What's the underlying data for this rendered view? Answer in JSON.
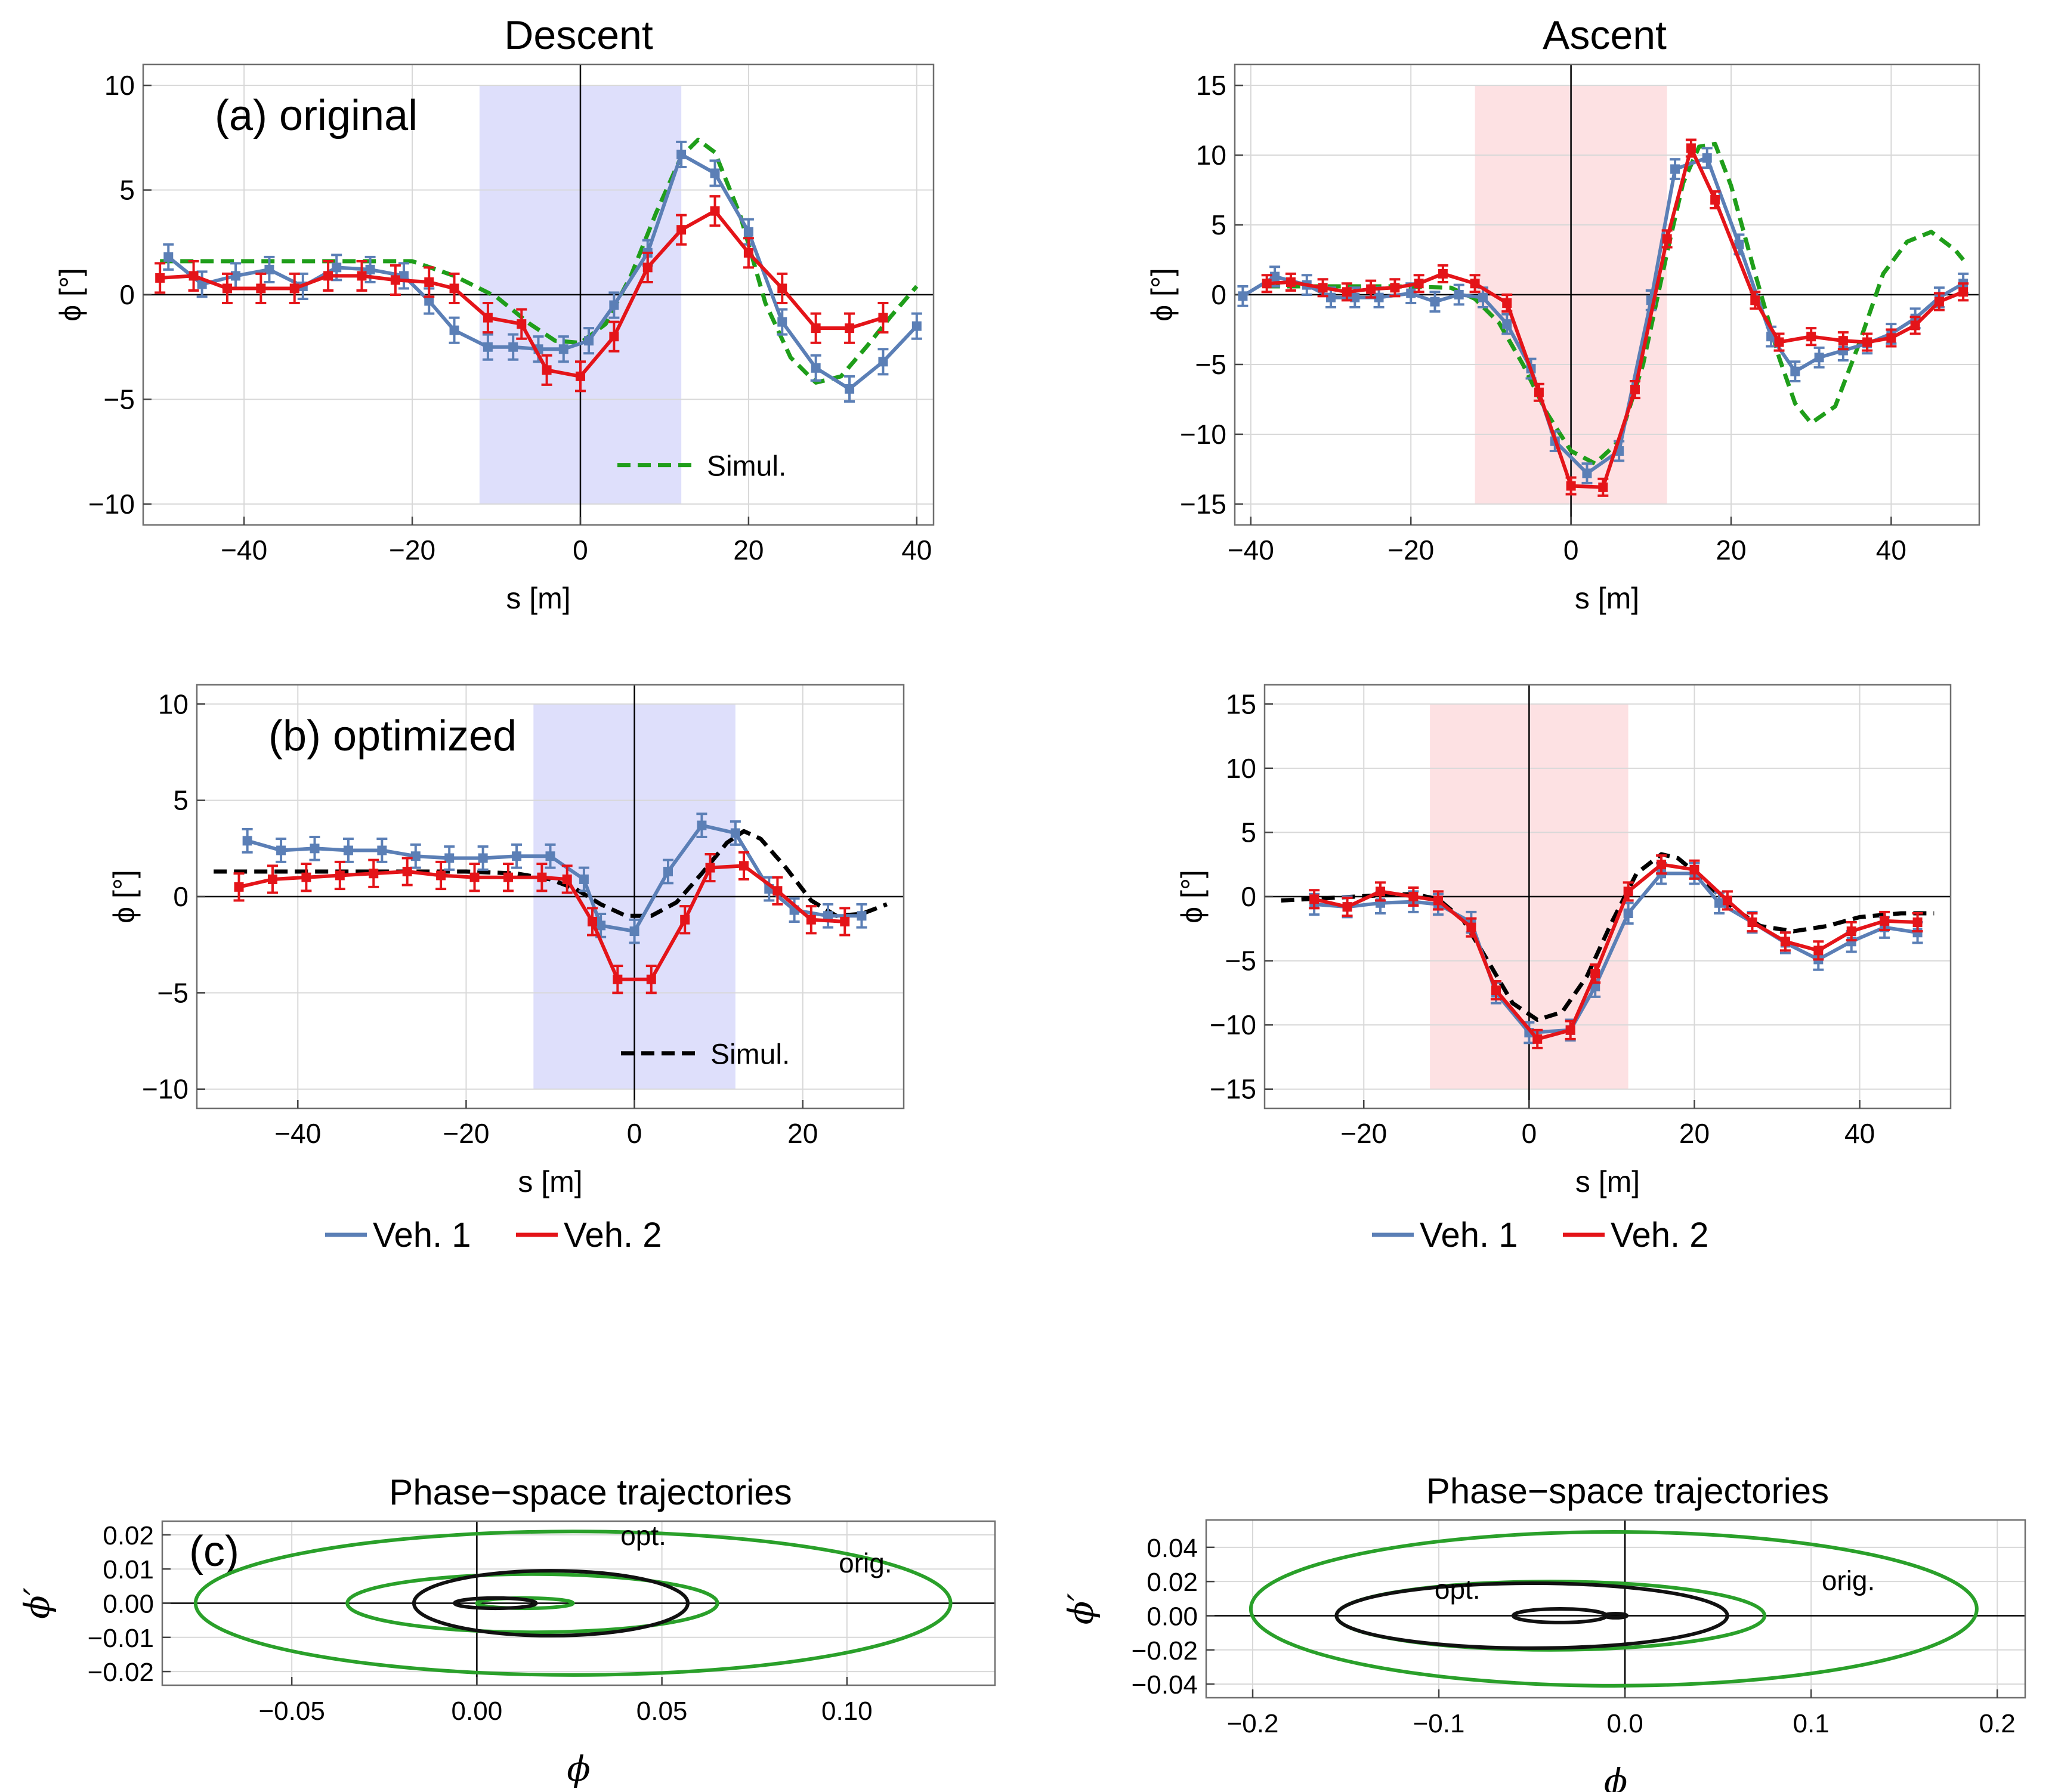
{
  "figure": {
    "column_titles": [
      "Descent",
      "Ascent"
    ],
    "colors": {
      "veh1": "#5b7fb6",
      "veh2": "#e41419",
      "simul_green": "#1f9e1a",
      "simul_black": "#000000",
      "descent_shade": "#dedffb",
      "ascent_shade": "#fde1e3",
      "phase_green": "#2aa02a",
      "phase_black": "#111111"
    },
    "legend_rows": [
      {
        "veh1": "Veh. 1",
        "veh2": "Veh. 2"
      },
      {
        "veh1": "Veh. 1",
        "veh2": "Veh. 2"
      }
    ],
    "symbols": {
      "phi": "ϕ",
      "phi_unit": "[°]",
      "phi_prime": "ϕ′"
    }
  },
  "chart_data": [
    {
      "id": "descent-original",
      "type": "line",
      "panel_label": "(a) original",
      "xlabel": "s [m]",
      "ylabel": "ϕ [°]",
      "xlim": [
        -52,
        42
      ],
      "ylim": [
        -11,
        11
      ],
      "xticks": [
        -40,
        -20,
        0,
        20,
        40
      ],
      "yticks": [
        -10,
        -5,
        0,
        5,
        10
      ],
      "xtick_labels": [
        "−40",
        "−20",
        "0",
        "20",
        "40"
      ],
      "ytick_labels": [
        "−10",
        "−5",
        "0",
        "5",
        "10"
      ],
      "shade": {
        "x": [
          -12,
          12
        ],
        "y": [
          -10,
          10
        ],
        "color": "descent_shade"
      },
      "legend": [
        {
          "name": "Simul.",
          "style": "dashed",
          "color": "simul_green"
        }
      ],
      "series": [
        {
          "name": "Veh. 1",
          "color": "veh1",
          "err": 0.6,
          "x": [
            -49,
            -45,
            -41,
            -37,
            -33,
            -29,
            -25,
            -21,
            -18,
            -15,
            -11,
            -8,
            -5,
            -2,
            1,
            4,
            8,
            12,
            16,
            20,
            24,
            28,
            32,
            36,
            40
          ],
          "y": [
            1.8,
            0.5,
            0.9,
            1.2,
            0.4,
            1.3,
            1.2,
            0.9,
            -0.3,
            -1.7,
            -2.5,
            -2.5,
            -2.6,
            -2.6,
            -2.2,
            -0.5,
            2.0,
            6.7,
            5.8,
            3.0,
            -1.3,
            -3.5,
            -4.5,
            -3.2,
            -1.5
          ]
        },
        {
          "name": "Veh. 2",
          "color": "veh2",
          "err": 0.7,
          "x": [
            -50,
            -46,
            -42,
            -38,
            -34,
            -30,
            -26,
            -22,
            -18,
            -15,
            -11,
            -7,
            -4,
            0,
            4,
            8,
            12,
            16,
            20,
            24,
            28,
            32,
            36
          ],
          "y": [
            0.8,
            0.9,
            0.3,
            0.3,
            0.3,
            0.9,
            0.9,
            0.7,
            0.6,
            0.3,
            -1.1,
            -1.4,
            -3.6,
            -3.9,
            -2.0,
            1.3,
            3.1,
            4.0,
            2.0,
            0.3,
            -1.6,
            -1.6,
            -1.1
          ]
        },
        {
          "name": "Simul.",
          "color": "simul_green",
          "style": "dashed",
          "x": [
            -50,
            -45,
            -40,
            -35,
            -30,
            -25,
            -20,
            -15,
            -10,
            -6,
            -3,
            0,
            3,
            6,
            9,
            12,
            14,
            16,
            19,
            22,
            25,
            28,
            31,
            34,
            37,
            40
          ],
          "y": [
            1.6,
            1.6,
            1.6,
            1.6,
            1.6,
            1.6,
            1.6,
            0.9,
            -0.1,
            -1.4,
            -2.2,
            -2.3,
            -1.4,
            0.9,
            3.9,
            6.6,
            7.4,
            6.8,
            3.8,
            -0.4,
            -3.0,
            -4.2,
            -3.9,
            -2.5,
            -1.0,
            0.4
          ]
        }
      ]
    },
    {
      "id": "ascent-original",
      "type": "line",
      "xlabel": "s [m]",
      "ylabel": "ϕ [°]",
      "xlim": [
        -42,
        51
      ],
      "ylim": [
        -16.5,
        16.5
      ],
      "xticks": [
        -40,
        -20,
        0,
        20,
        40
      ],
      "yticks": [
        -15,
        -10,
        -5,
        0,
        5,
        10,
        15
      ],
      "xtick_labels": [
        "−40",
        "−20",
        "0",
        "20",
        "40"
      ],
      "ytick_labels": [
        "−15",
        "−10",
        "−5",
        "0",
        "5",
        "10",
        "15"
      ],
      "shade": {
        "x": [
          -12,
          12
        ],
        "y": [
          -15,
          15
        ],
        "color": "ascent_shade"
      },
      "series": [
        {
          "name": "Veh. 1",
          "color": "veh1",
          "err": 0.7,
          "x": [
            -41,
            -37,
            -33,
            -30,
            -27,
            -24,
            -20,
            -17,
            -14,
            -11,
            -8,
            -5,
            -2,
            2,
            6,
            10,
            13,
            17,
            21,
            25,
            28,
            31,
            34,
            37,
            40,
            43,
            46,
            49
          ],
          "y": [
            -0.1,
            1.3,
            0.7,
            -0.2,
            -0.2,
            -0.2,
            0.1,
            -0.5,
            0.0,
            -0.2,
            -2.1,
            -5.3,
            -10.5,
            -12.8,
            -11.2,
            -0.4,
            9.0,
            9.8,
            3.6,
            -3.0,
            -5.5,
            -4.5,
            -4.0,
            -3.5,
            -2.8,
            -1.7,
            -0.2,
            0.8
          ]
        },
        {
          "name": "Veh. 2",
          "color": "veh2",
          "err": 0.6,
          "x": [
            -38,
            -35,
            -31,
            -28,
            -25,
            -22,
            -19,
            -16,
            -12,
            -8,
            -4,
            0,
            4,
            8,
            12,
            15,
            18,
            23,
            26,
            30,
            34,
            37,
            40,
            43,
            46,
            49
          ],
          "y": [
            0.8,
            0.9,
            0.5,
            0.2,
            0.4,
            0.5,
            0.8,
            1.5,
            0.8,
            -0.6,
            -7.0,
            -13.7,
            -13.8,
            -6.8,
            4.0,
            10.5,
            6.8,
            -0.4,
            -3.4,
            -3.0,
            -3.3,
            -3.4,
            -3.1,
            -2.2,
            -0.5,
            0.2
          ]
        },
        {
          "name": "Simul.",
          "color": "simul_green",
          "style": "dashed",
          "x": [
            -38,
            -30,
            -22,
            -15,
            -12,
            -9,
            -6,
            -3,
            0,
            3,
            6,
            9,
            12,
            14,
            16,
            18,
            20,
            23,
            26,
            28,
            30,
            33,
            36,
            39,
            42,
            45,
            48,
            49
          ],
          "y": [
            0.6,
            0.6,
            0.6,
            0.5,
            -0.3,
            -2.0,
            -5.0,
            -8.5,
            -11.2,
            -12.1,
            -10.5,
            -5.0,
            3.0,
            8.0,
            10.6,
            10.8,
            7.8,
            1.5,
            -4.5,
            -7.8,
            -9.2,
            -8.0,
            -3.5,
            1.5,
            3.8,
            4.5,
            3.2,
            2.5
          ]
        }
      ]
    },
    {
      "id": "descent-optimized",
      "type": "line",
      "panel_label": "(b) optimized",
      "xlabel": "s [m]",
      "ylabel": "ϕ [°]",
      "xlim": [
        -52,
        32
      ],
      "ylim": [
        -11,
        11
      ],
      "xticks": [
        -40,
        -20,
        0,
        20
      ],
      "yticks": [
        -10,
        -5,
        0,
        5,
        10
      ],
      "xtick_labels": [
        "−40",
        "−20",
        "0",
        "20"
      ],
      "ytick_labels": [
        "−10",
        "−5",
        "0",
        "5",
        "10"
      ],
      "shade": {
        "x": [
          -12,
          12
        ],
        "y": [
          -10,
          10
        ],
        "color": "descent_shade"
      },
      "legend": [
        {
          "name": "Simul.",
          "style": "dashed",
          "color": "simul_black"
        }
      ],
      "series": [
        {
          "name": "Veh. 1",
          "color": "veh1",
          "err": 0.6,
          "x": [
            -46,
            -42,
            -38,
            -34,
            -30,
            -26,
            -22,
            -18,
            -14,
            -10,
            -6,
            -4,
            0,
            4,
            8,
            12,
            16,
            19,
            23,
            27
          ],
          "y": [
            2.9,
            2.4,
            2.5,
            2.4,
            2.4,
            2.1,
            2.0,
            2.0,
            2.1,
            2.1,
            0.9,
            -1.5,
            -1.8,
            1.3,
            3.7,
            3.3,
            0.4,
            -0.7,
            -1.0,
            -1.0
          ]
        },
        {
          "name": "Veh. 2",
          "color": "veh2",
          "err": 0.7,
          "x": [
            -47,
            -43,
            -39,
            -35,
            -31,
            -27,
            -23,
            -19,
            -15,
            -11,
            -8,
            -5,
            -2,
            2,
            6,
            9,
            13,
            17,
            21,
            25
          ],
          "y": [
            0.5,
            0.9,
            1.0,
            1.1,
            1.2,
            1.3,
            1.1,
            1.0,
            1.0,
            1.0,
            0.9,
            -1.3,
            -4.3,
            -4.3,
            -1.2,
            1.5,
            1.6,
            0.3,
            -1.2,
            -1.3
          ]
        },
        {
          "name": "Simul.",
          "color": "simul_black",
          "style": "dashed",
          "x": [
            -50,
            -40,
            -30,
            -20,
            -14,
            -10,
            -7,
            -4,
            -1,
            2,
            5,
            8,
            11,
            13,
            15,
            18,
            21,
            24,
            27,
            30
          ],
          "y": [
            1.3,
            1.3,
            1.3,
            1.3,
            1.2,
            0.9,
            0.4,
            -0.4,
            -1.0,
            -1.0,
            -0.3,
            1.2,
            2.8,
            3.4,
            3.0,
            1.5,
            -0.2,
            -1.0,
            -0.9,
            -0.4
          ]
        }
      ]
    },
    {
      "id": "ascent-optimized",
      "type": "line",
      "xlabel": "s [m]",
      "ylabel": "ϕ [°]",
      "xlim": [
        -32,
        51
      ],
      "ylim": [
        -16.5,
        16.5
      ],
      "xticks": [
        -20,
        0,
        20,
        40
      ],
      "yticks": [
        -15,
        -10,
        -5,
        0,
        5,
        10,
        15
      ],
      "xtick_labels": [
        "−20",
        "0",
        "20",
        "40"
      ],
      "ytick_labels": [
        "−15",
        "−10",
        "−5",
        "0",
        "5",
        "10",
        "15"
      ],
      "shade": {
        "x": [
          -12,
          12
        ],
        "y": [
          -15,
          15
        ],
        "color": "ascent_shade"
      },
      "series": [
        {
          "name": "Veh. 1",
          "color": "veh1",
          "err": 0.8,
          "x": [
            -26,
            -22,
            -18,
            -14,
            -11,
            -7,
            -4,
            0,
            5,
            8,
            12,
            16,
            20,
            23,
            27,
            31,
            35,
            39,
            43,
            47
          ],
          "y": [
            -0.6,
            -0.8,
            -0.5,
            -0.4,
            -0.6,
            -2.0,
            -7.5,
            -10.6,
            -10.4,
            -7.0,
            -1.3,
            1.8,
            1.8,
            -0.5,
            -2.0,
            -3.6,
            -4.9,
            -3.5,
            -2.4,
            -2.8
          ]
        },
        {
          "name": "Veh. 2",
          "color": "veh2",
          "err": 0.7,
          "x": [
            -26,
            -22,
            -18,
            -14,
            -11,
            -7,
            -4,
            1,
            5,
            8,
            12,
            16,
            20,
            24,
            27,
            31,
            35,
            39,
            43,
            47
          ],
          "y": [
            -0.2,
            -0.8,
            0.4,
            0.0,
            -0.3,
            -2.4,
            -7.3,
            -11.1,
            -10.4,
            -6.0,
            0.4,
            2.5,
            2.1,
            -0.3,
            -2.0,
            -3.5,
            -4.2,
            -2.7,
            -1.9,
            -2.0
          ]
        },
        {
          "name": "Simul.",
          "color": "simul_black",
          "style": "dashed",
          "x": [
            -30,
            -24,
            -18,
            -14,
            -11,
            -8,
            -5,
            -2,
            1,
            4,
            7,
            10,
            13,
            16,
            18,
            21,
            24,
            28,
            32,
            36,
            40,
            45,
            49
          ],
          "y": [
            -0.3,
            -0.1,
            0.1,
            0.2,
            -0.2,
            -1.8,
            -5.0,
            -8.3,
            -9.6,
            -9.0,
            -6.2,
            -2.0,
            1.8,
            3.3,
            3.0,
            1.4,
            -0.6,
            -2.3,
            -2.7,
            -2.3,
            -1.6,
            -1.3,
            -1.3
          ]
        }
      ]
    },
    {
      "id": "phase-descent",
      "type": "line",
      "title": "Phase−space trajectories",
      "panel_label": "(c)",
      "xlabel": "ϕ",
      "ylabel": "ϕ′",
      "xlim": [
        -0.085,
        0.14
      ],
      "ylim": [
        -0.024,
        0.024
      ],
      "xticks": [
        -0.05,
        0.0,
        0.05,
        0.1
      ],
      "yticks": [
        -0.02,
        -0.01,
        0.0,
        0.01,
        0.02
      ],
      "xtick_labels": [
        "−0.05",
        "0.00",
        "0.05",
        "0.10"
      ],
      "ytick_labels": [
        "−0.02",
        "−0.01",
        "0.00",
        "0.01",
        "0.02"
      ],
      "annotations": [
        {
          "text": "opt.",
          "x": 0.045,
          "y": 0.017
        },
        {
          "text": "orig.",
          "x": 0.105,
          "y": 0.009
        }
      ],
      "series": [
        {
          "name": "orig.",
          "color": "phase_green",
          "rings": [
            {
              "cx": 0.026,
              "cy": 0.0,
              "rx": 0.102,
              "ry": 0.021
            },
            {
              "cx": 0.015,
              "cy": 0.0,
              "rx": 0.05,
              "ry": 0.0085
            },
            {
              "cx": 0.013,
              "cy": 0.0,
              "rx": 0.013,
              "ry": 0.0015
            }
          ]
        },
        {
          "name": "opt.",
          "color": "phase_black",
          "rings": [
            {
              "cx": 0.02,
              "cy": 0.0,
              "rx": 0.037,
              "ry": 0.0095
            },
            {
              "cx": 0.005,
              "cy": 0.0,
              "rx": 0.011,
              "ry": 0.0015
            }
          ]
        }
      ]
    },
    {
      "id": "phase-ascent",
      "type": "line",
      "title": "Phase−space trajectories",
      "xlabel": "ϕ",
      "ylabel": "ϕ′",
      "xlim": [
        -0.225,
        0.215
      ],
      "ylim": [
        -0.048,
        0.056
      ],
      "xticks": [
        -0.2,
        -0.1,
        0.0,
        0.1,
        0.2
      ],
      "yticks": [
        -0.04,
        -0.02,
        0.0,
        0.02,
        0.04
      ],
      "xtick_labels": [
        "−0.2",
        "−0.1",
        "0.0",
        "0.1",
        "0.2"
      ],
      "ytick_labels": [
        "−0.04",
        "−0.02",
        "0.00",
        "0.02",
        "0.04"
      ],
      "annotations": [
        {
          "text": "opt.",
          "x": -0.09,
          "y": 0.01
        },
        {
          "text": "orig.",
          "x": 0.12,
          "y": 0.015
        }
      ],
      "series": [
        {
          "name": "orig.",
          "color": "phase_green",
          "rings": [
            {
              "cx": -0.006,
              "cy": 0.004,
              "rx": 0.195,
              "ry": 0.045
            },
            {
              "cx": -0.04,
              "cy": 0.0,
              "rx": 0.115,
              "ry": 0.02
            }
          ]
        },
        {
          "name": "opt.",
          "color": "phase_black",
          "rings": [
            {
              "cx": -0.05,
              "cy": 0.0,
              "rx": 0.105,
              "ry": 0.019
            },
            {
              "cx": -0.035,
              "cy": 0.0,
              "rx": 0.025,
              "ry": 0.004
            },
            {
              "cx": -0.005,
              "cy": 0.0,
              "rx": 0.006,
              "ry": 0.0012
            }
          ]
        }
      ]
    }
  ]
}
